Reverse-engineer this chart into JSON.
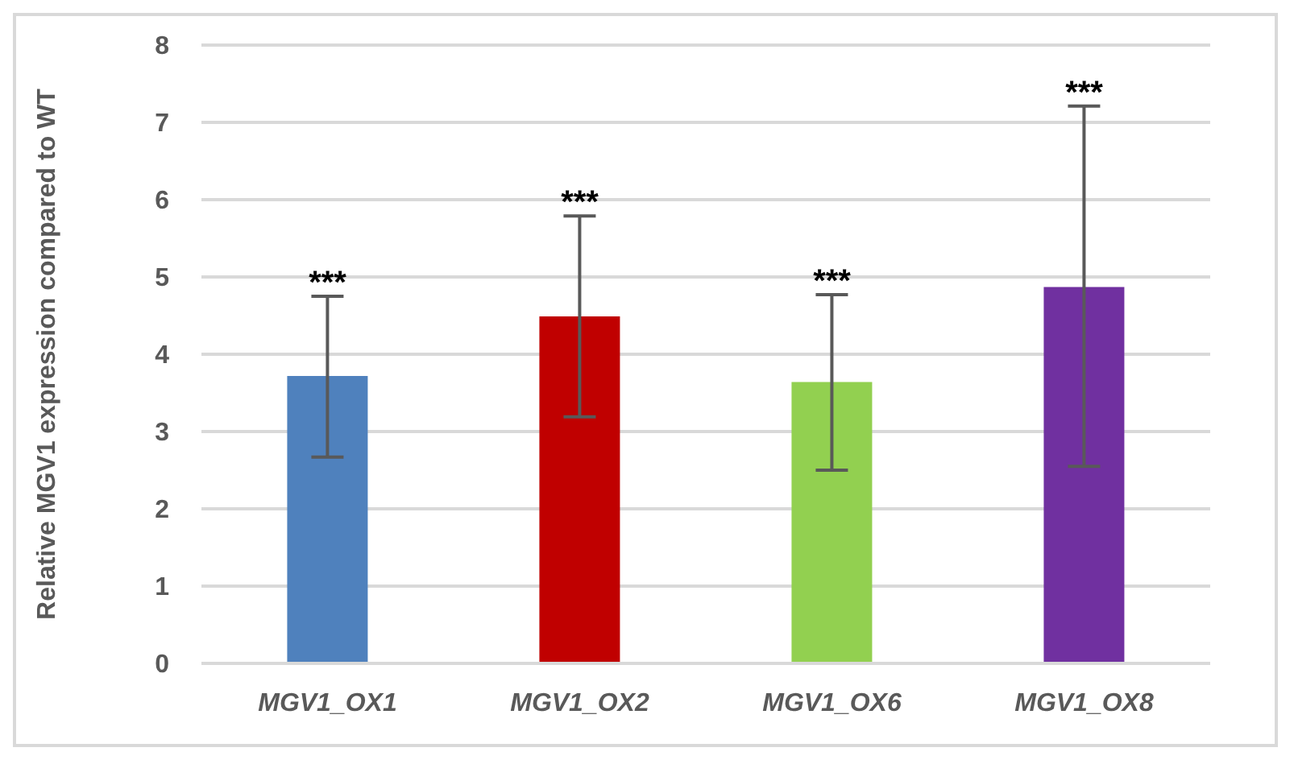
{
  "chart_data": {
    "type": "bar",
    "ylabel": "Relative MGV1 expression compared to WT",
    "categories": [
      "MGV1_OX1",
      "MGV1_OX2",
      "MGV1_OX6",
      "MGV1_OX8"
    ],
    "values": [
      3.72,
      4.49,
      3.64,
      4.87
    ],
    "colors": [
      "#4f81bd",
      "#c00000",
      "#92d050",
      "#7030a0"
    ],
    "errors": [
      [
        2.67,
        4.75
      ],
      [
        3.19,
        5.79
      ],
      [
        2.5,
        4.77
      ],
      [
        2.55,
        7.21
      ]
    ],
    "ylim": [
      0,
      8
    ],
    "yticks": [
      0,
      1,
      2,
      3,
      4,
      5,
      6,
      7,
      8
    ],
    "grid": "y",
    "legend": false,
    "annotations": [
      {
        "text": "***",
        "x": "MGV1_OX1",
        "y": 4.75
      },
      {
        "text": "***",
        "x": "MGV1_OX2",
        "y": 5.79
      },
      {
        "text": "***",
        "x": "MGV1_OX6",
        "y": 4.77
      },
      {
        "text": "***",
        "x": "MGV1_OX8",
        "y": 7.21
      }
    ]
  }
}
